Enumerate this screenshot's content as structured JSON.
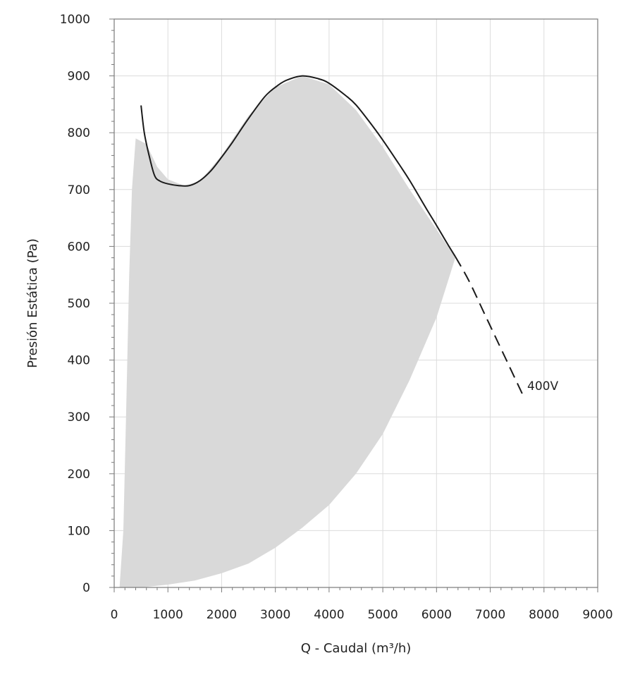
{
  "chart_data": {
    "type": "line",
    "xlabel": "Q - Caudal (m³/h)",
    "ylabel": "Presión Estática (Pa)",
    "xlim": [
      0,
      9000
    ],
    "ylim": [
      0,
      1000
    ],
    "x_ticks": [
      0,
      1000,
      2000,
      3000,
      4000,
      5000,
      6000,
      7000,
      8000,
      9000
    ],
    "y_ticks": [
      0,
      100,
      200,
      300,
      400,
      500,
      600,
      700,
      800,
      900,
      1000
    ],
    "grid": true,
    "colors": {
      "curve": "#1a1a1a",
      "area": "#d9d9d9",
      "grid": "#dcdcdc",
      "axis": "#7a7a7a"
    },
    "operating_area": {
      "upper": [
        [
          100,
          0
        ],
        [
          170,
          100
        ],
        [
          220,
          300
        ],
        [
          280,
          550
        ],
        [
          330,
          700
        ],
        [
          400,
          790
        ],
        [
          600,
          780
        ],
        [
          800,
          740
        ],
        [
          1000,
          718
        ],
        [
          1300,
          707
        ],
        [
          1600,
          715
        ],
        [
          2000,
          760
        ],
        [
          2500,
          830
        ],
        [
          3000,
          880
        ],
        [
          3500,
          900
        ],
        [
          4000,
          885
        ],
        [
          4500,
          840
        ],
        [
          5000,
          775
        ],
        [
          5500,
          700
        ],
        [
          6000,
          630
        ],
        [
          6350,
          580
        ]
      ],
      "lower": [
        [
          6350,
          580
        ],
        [
          6000,
          475
        ],
        [
          5500,
          365
        ],
        [
          5000,
          270
        ],
        [
          4500,
          200
        ],
        [
          4000,
          145
        ],
        [
          3500,
          105
        ],
        [
          3000,
          70
        ],
        [
          2500,
          42
        ],
        [
          2000,
          25
        ],
        [
          1500,
          12
        ],
        [
          1000,
          5
        ],
        [
          500,
          0
        ],
        [
          100,
          0
        ]
      ]
    },
    "series": [
      {
        "name": "400V",
        "solid": [
          [
            500,
            848
          ],
          [
            560,
            800
          ],
          [
            650,
            760
          ],
          [
            750,
            725
          ],
          [
            850,
            715
          ],
          [
            1000,
            710
          ],
          [
            1200,
            707
          ],
          [
            1400,
            707
          ],
          [
            1600,
            716
          ],
          [
            1800,
            733
          ],
          [
            2000,
            757
          ],
          [
            2200,
            783
          ],
          [
            2500,
            825
          ],
          [
            2800,
            863
          ],
          [
            3000,
            880
          ],
          [
            3200,
            892
          ],
          [
            3500,
            900
          ],
          [
            3800,
            895
          ],
          [
            4000,
            887
          ],
          [
            4300,
            866
          ],
          [
            4500,
            849
          ],
          [
            4800,
            813
          ],
          [
            5000,
            787
          ],
          [
            5300,
            745
          ],
          [
            5500,
            716
          ],
          [
            5800,
            668
          ],
          [
            6000,
            637
          ],
          [
            6200,
            605
          ],
          [
            6350,
            582
          ]
        ],
        "dashed": [
          [
            6350,
            582
          ],
          [
            6600,
            540
          ],
          [
            6900,
            480
          ],
          [
            7200,
            420
          ],
          [
            7400,
            380
          ],
          [
            7600,
            340
          ]
        ]
      }
    ]
  }
}
